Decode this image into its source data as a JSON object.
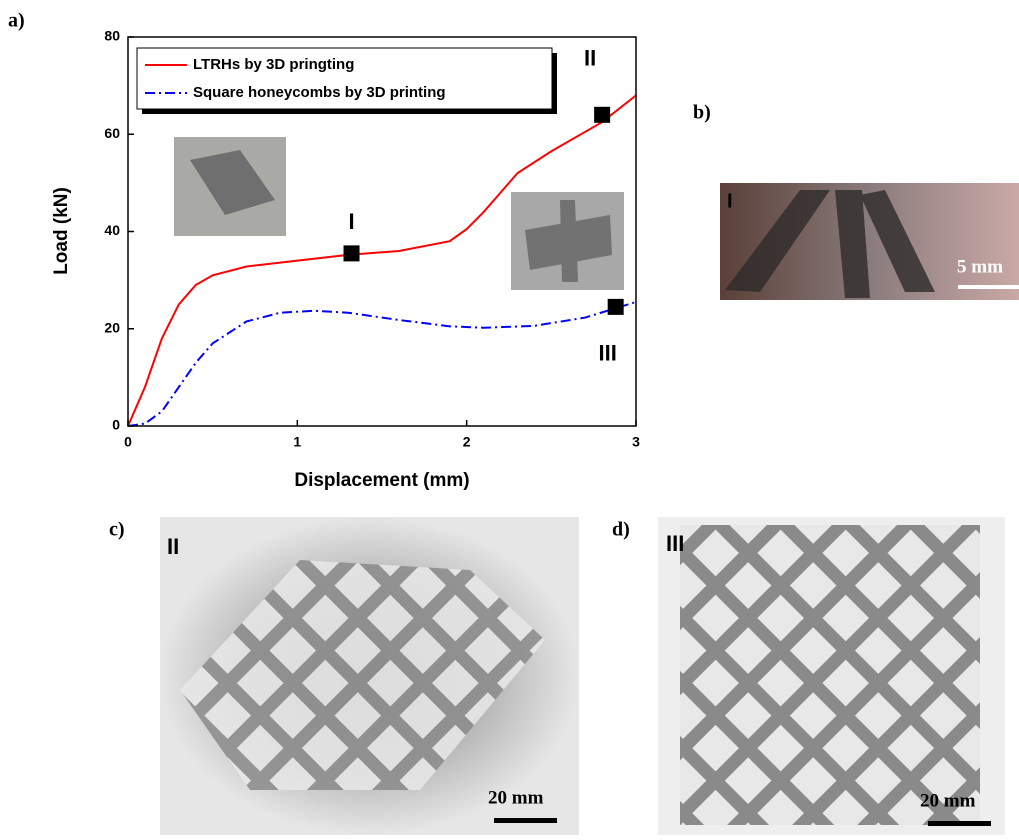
{
  "panel_labels": [
    "a)",
    "b)",
    "c)",
    "d)"
  ],
  "chart_data": {
    "type": "line",
    "xlabel": "Displacement (mm)",
    "ylabel": "Load (kN)",
    "xlim": [
      0,
      3
    ],
    "ylim": [
      0,
      80
    ],
    "xticks": [
      0,
      1,
      2,
      3
    ],
    "yticks": [
      0,
      20,
      40,
      60,
      80
    ],
    "legend": "upper left",
    "series": [
      {
        "name": "LTRHs by 3D pringting",
        "color": "#ff0000",
        "dash": "solid",
        "x": [
          0,
          0.1,
          0.2,
          0.3,
          0.4,
          0.5,
          0.7,
          1.0,
          1.3,
          1.6,
          1.9,
          2.0,
          2.1,
          2.2,
          2.3,
          2.5,
          2.7,
          2.8,
          3.0
        ],
        "values": [
          0,
          8,
          18,
          25,
          29,
          31,
          32.8,
          34,
          35.2,
          36,
          38,
          40.5,
          44,
          48,
          52,
          56.5,
          60.5,
          62.5,
          68
        ]
      },
      {
        "name": "Square honeycombs by 3D printing",
        "color": "#0000ff",
        "dash": "dashdot",
        "x": [
          0,
          0.1,
          0.2,
          0.3,
          0.4,
          0.5,
          0.7,
          0.9,
          1.1,
          1.3,
          1.6,
          1.9,
          2.1,
          2.4,
          2.7,
          3.0
        ],
        "values": [
          0,
          0.5,
          3,
          8,
          13,
          17,
          21.5,
          23.3,
          23.7,
          23.3,
          21.8,
          20.5,
          20.2,
          20.6,
          22.3,
          25.5
        ]
      }
    ],
    "markers": [
      {
        "label": "I",
        "x": 1.32,
        "y": 35.5
      },
      {
        "label": "II",
        "x": 2.8,
        "y": 64
      },
      {
        "label": "III",
        "x": 2.88,
        "y": 24.5
      }
    ]
  },
  "photos": [
    {
      "label": "I",
      "scale": "5 mm"
    },
    {
      "label": "II",
      "scale": "20 mm"
    },
    {
      "label": "III",
      "scale": "20 mm"
    }
  ]
}
